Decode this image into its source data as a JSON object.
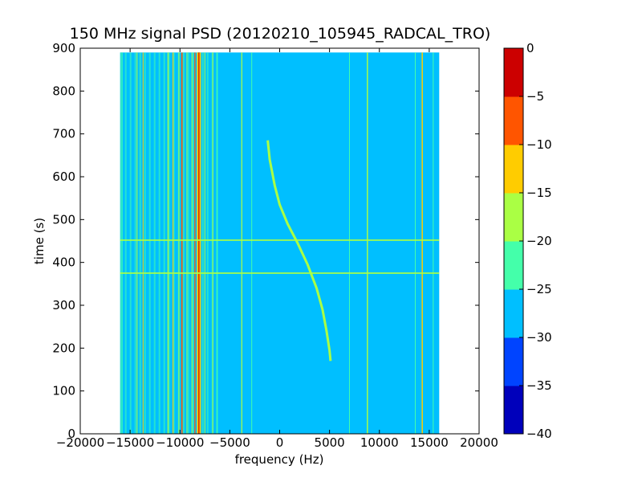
{
  "chart_data": {
    "type": "heatmap",
    "title": "150 MHz signal PSD (20120210_105945_RADCAL_TRO)",
    "xlabel": "frequency (Hz)",
    "ylabel": "time (s)",
    "xlim": [
      -20000,
      20000
    ],
    "ylim": [
      0,
      900
    ],
    "x_ticks": [
      -20000,
      -15000,
      -10000,
      -5000,
      0,
      5000,
      10000,
      15000,
      20000
    ],
    "x_tick_labels": [
      "−20000",
      "−15000",
      "−10000",
      "−5000",
      "0",
      "5000",
      "10000",
      "15000",
      "20000"
    ],
    "y_ticks": [
      0,
      100,
      200,
      300,
      400,
      500,
      600,
      700,
      800,
      900
    ],
    "y_tick_labels": [
      "0",
      "100",
      "200",
      "300",
      "400",
      "500",
      "600",
      "700",
      "800",
      "900"
    ],
    "data_extent": {
      "freq": [
        -16000,
        16000
      ],
      "time": [
        0,
        890
      ]
    },
    "colorbar": {
      "levels": [
        -40,
        -35,
        -30,
        -25,
        -20,
        -15,
        -10,
        -5,
        0
      ],
      "level_labels": [
        "−40",
        "−35",
        "−30",
        "−25",
        "−20",
        "−15",
        "−10",
        "−5",
        "0"
      ],
      "colors": [
        "#0000bb",
        "#0044ff",
        "#00bfff",
        "#44ffaa",
        "#aaff44",
        "#ffcc00",
        "#ff5500",
        "#cc0000"
      ],
      "background_color": "#00bfff"
    },
    "features": {
      "vertical_lines": [
        {
          "freq": -15800,
          "level": -25,
          "width": 60
        },
        {
          "freq": -14300,
          "level": -20,
          "width": 80
        },
        {
          "freq": -13700,
          "level": -15,
          "width": 60
        },
        {
          "freq": -11200,
          "level": -20,
          "width": 100
        },
        {
          "freq": -10700,
          "level": -15,
          "width": 80
        },
        {
          "freq": -10100,
          "level": -20,
          "width": 80
        },
        {
          "freq": -9800,
          "level": -10,
          "width": 120
        },
        {
          "freq": -9300,
          "level": -20,
          "width": 80
        },
        {
          "freq": -8800,
          "level": -20,
          "width": 80
        },
        {
          "freq": -8500,
          "level": -10,
          "width": 100
        },
        {
          "freq": -8100,
          "level": -15,
          "width": 400
        },
        {
          "freq": -8100,
          "level": -5,
          "width": 100
        },
        {
          "freq": -7500,
          "level": -20,
          "width": 80
        },
        {
          "freq": -6700,
          "level": -20,
          "width": 80
        },
        {
          "freq": -6300,
          "level": -25,
          "width": 60
        },
        {
          "freq": -3800,
          "level": -20,
          "width": 100
        },
        {
          "freq": -2800,
          "level": -25,
          "width": 60
        },
        {
          "freq": 7000,
          "level": -25,
          "width": 80
        },
        {
          "freq": 8800,
          "level": -20,
          "width": 120
        },
        {
          "freq": 13600,
          "level": -25,
          "width": 80
        },
        {
          "freq": 14300,
          "level": -15,
          "width": 120
        },
        {
          "freq": 15400,
          "level": -25,
          "width": 80
        }
      ],
      "dense_region": {
        "freq": [
          -16000,
          -6000
        ],
        "level": -25
      },
      "horizontal_lines": [
        {
          "time": 375,
          "freq": [
            -16000,
            16000
          ],
          "level": -20
        },
        {
          "time": 452,
          "freq": [
            -16000,
            16000
          ],
          "level": -20
        }
      ],
      "chirp": {
        "level": -20,
        "points": [
          [
            -1200,
            685
          ],
          [
            -1000,
            640
          ],
          [
            -500,
            580
          ],
          [
            0,
            535
          ],
          [
            800,
            490
          ],
          [
            1800,
            445
          ],
          [
            2800,
            395
          ],
          [
            3700,
            340
          ],
          [
            4300,
            290
          ],
          [
            4700,
            240
          ],
          [
            5000,
            195
          ],
          [
            5100,
            170
          ]
        ]
      }
    }
  }
}
